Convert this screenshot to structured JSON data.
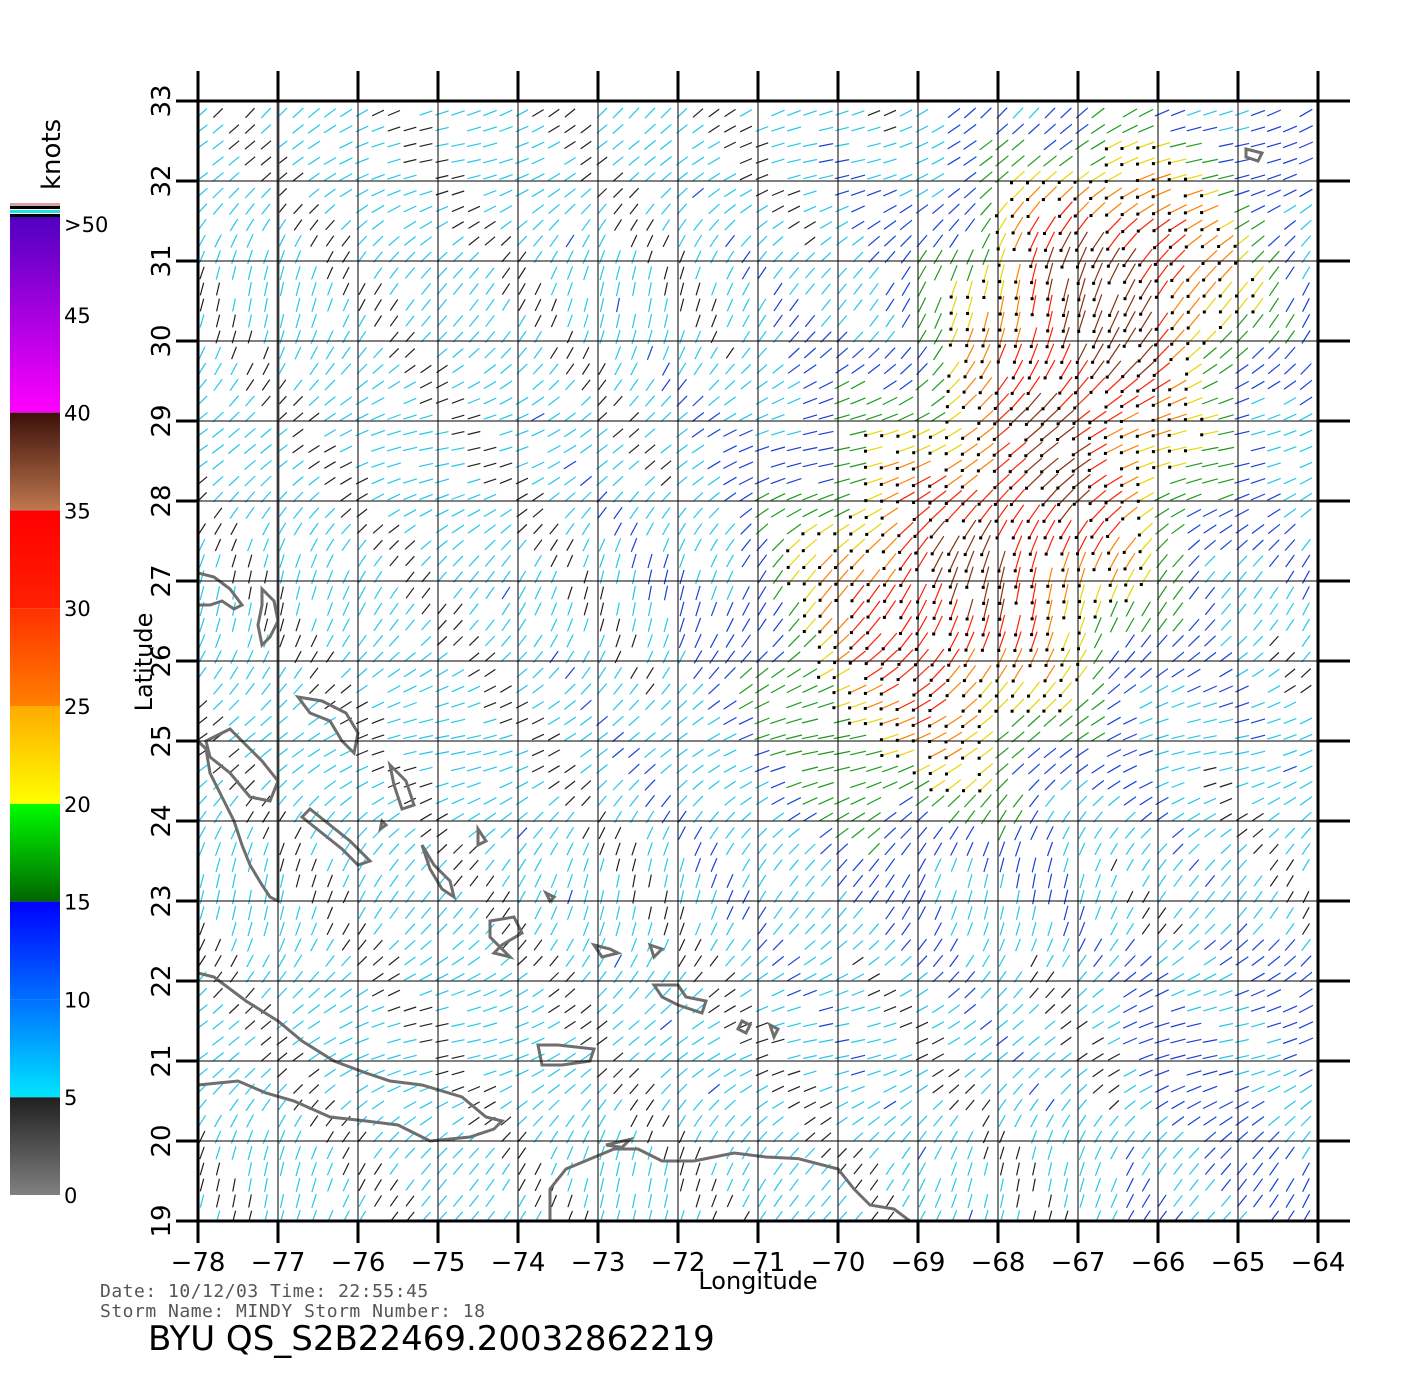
{
  "map": {
    "lon_range": [
      -78,
      -64
    ],
    "lat_range": [
      19,
      33
    ],
    "lon_ticks": [
      "−78",
      "−77",
      "−76",
      "−75",
      "−74",
      "−73",
      "−72",
      "−71",
      "−70",
      "−69",
      "−68",
      "−67",
      "−66",
      "−65",
      "−64"
    ],
    "lat_ticks": [
      "19",
      "20",
      "21",
      "22",
      "23",
      "24",
      "25",
      "26",
      "27",
      "28",
      "29",
      "30",
      "31",
      "32",
      "33"
    ],
    "x_label": "Longitude",
    "y_label": "Latitude",
    "grid": true,
    "coastline_color": "#6e6e6e",
    "field": "wind vectors (QuikSCAT)"
  },
  "colorbar": {
    "title": "knots",
    "labels": [
      ">50",
      "45",
      "40",
      "35",
      "30",
      "25",
      "20",
      "15",
      "10",
      "5",
      "0"
    ],
    "bands": [
      {
        "from": 0,
        "to": 5,
        "colors": [
          "#808080",
          "#202020"
        ]
      },
      {
        "from": 5,
        "to": 10,
        "colors": [
          "#00e5ff",
          "#0070ff"
        ]
      },
      {
        "from": 10,
        "to": 15,
        "colors": [
          "#0070ff",
          "#0000ff"
        ]
      },
      {
        "from": 15,
        "to": 20,
        "colors": [
          "#006400",
          "#00ff00"
        ]
      },
      {
        "from": 20,
        "to": 25,
        "colors": [
          "#ffff00",
          "#ffaa00"
        ]
      },
      {
        "from": 25,
        "to": 30,
        "colors": [
          "#ff8000",
          "#ff3000"
        ]
      },
      {
        "from": 30,
        "to": 35,
        "colors": [
          "#ff2000",
          "#ff0000"
        ]
      },
      {
        "from": 35,
        "to": 40,
        "colors": [
          "#c07850",
          "#3a1008"
        ]
      },
      {
        "from": 40,
        "to": 50,
        "colors": [
          "#ff00ff",
          "#5000c0"
        ]
      }
    ]
  },
  "info": {
    "date_line": "Date: 10/12/03   Time: 22:55:45",
    "storm_line": "Storm Name: MINDY   Storm Number: 18",
    "file_line": "BYU QS_S2B22469.20032862219"
  }
}
